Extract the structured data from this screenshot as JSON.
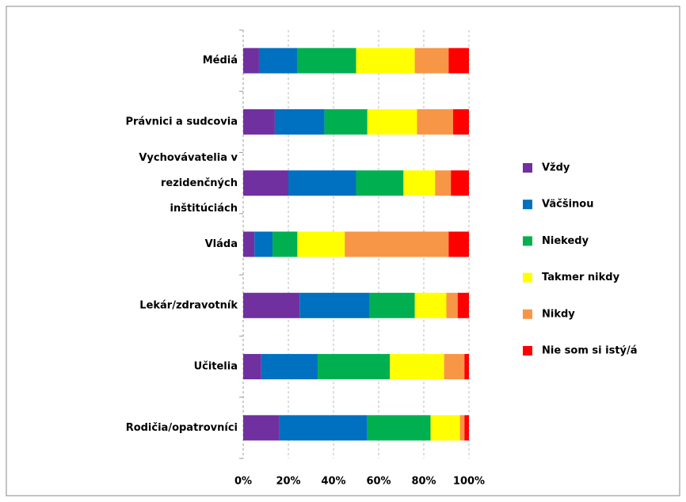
{
  "chart_data": {
    "type": "stacked_bar_horizontal",
    "categories": [
      "Médiá",
      "Právnici a sudcovia",
      "Vychovávatelia v rezidenčných inštitúciách",
      "Vláda",
      "Lekár/zdravotník",
      "Učitelia",
      "Rodičia/opatrovníci"
    ],
    "series": [
      {
        "name": "Vždy",
        "color": "#7030a0",
        "values": [
          7,
          14,
          20,
          5,
          25,
          8,
          16
        ]
      },
      {
        "name": "Väčšinou",
        "color": "#0070c0",
        "values": [
          17,
          22,
          30,
          8,
          31,
          25,
          39
        ]
      },
      {
        "name": "Niekedy",
        "color": "#00b050",
        "values": [
          26,
          19,
          21,
          11,
          20,
          32,
          28
        ]
      },
      {
        "name": "Takmer nikdy",
        "color": "#ffff00",
        "values": [
          26,
          22,
          14,
          21,
          14,
          24,
          13
        ]
      },
      {
        "name": "Nikdy",
        "color": "#f79646",
        "values": [
          15,
          16,
          7,
          46,
          5,
          9,
          2
        ]
      },
      {
        "name": "Nie som si istý/á",
        "color": "#ff0000",
        "values": [
          9,
          7,
          8,
          9,
          5,
          2,
          2
        ]
      }
    ],
    "xlim": [
      0,
      100
    ],
    "xticks": [
      {
        "value": 0,
        "label": "0%"
      },
      {
        "value": 20,
        "label": "20%"
      },
      {
        "value": 40,
        "label": "40%"
      },
      {
        "value": 60,
        "label": "60%"
      },
      {
        "value": 80,
        "label": "80%"
      },
      {
        "value": 100,
        "label": "100%"
      }
    ],
    "grid": true,
    "legend": "right"
  }
}
